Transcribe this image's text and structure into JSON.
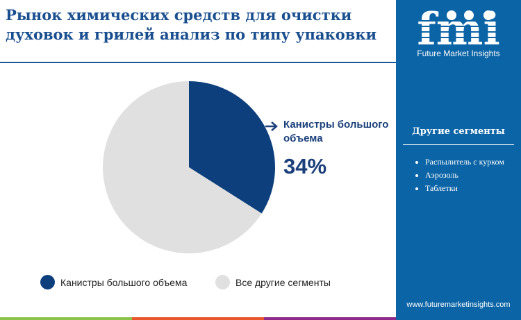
{
  "title": "Рынок химических средств для очистки духовок и грилей анализ по типу упаковки",
  "sidebar": {
    "logo_text": "fmi",
    "logo_subtitle": "Future Market Insights",
    "other_heading": "Другие сегменты",
    "other_items": [
      "Распылитель с курком",
      "Аэрозоль",
      "Таблетки"
    ],
    "url": "www.futuremarketinsights.com"
  },
  "colors": {
    "highlight": "#0d3f7d",
    "others": "#e0e0e0",
    "sidebar": "#0b64a6",
    "stripe": [
      "#8bc34a",
      "#e8562a",
      "#8e2a8a"
    ]
  },
  "chart_data": {
    "type": "pie",
    "slices": [
      {
        "label": "Канистры большого объема",
        "value": 34,
        "color": "#0d3f7d"
      },
      {
        "label": "Все другие сегменты",
        "value": 66,
        "color": "#e0e0e0"
      }
    ],
    "callout": {
      "label": "Канистры большого объема",
      "value_text": "34%"
    },
    "legend": {
      "position": "bottom",
      "entries": [
        "Канистры большого объема",
        "Все другие сегменты"
      ]
    }
  }
}
